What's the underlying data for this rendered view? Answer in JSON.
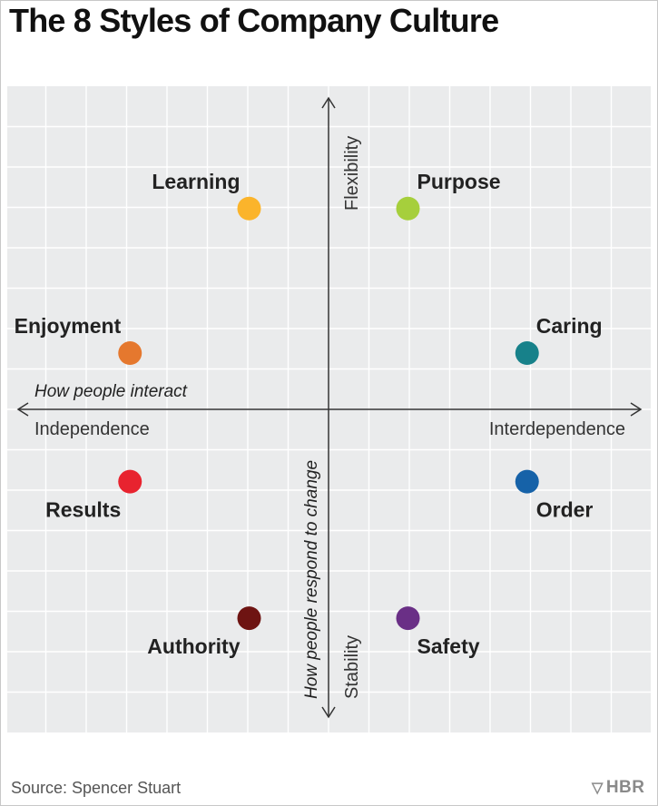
{
  "chart_data": {
    "type": "scatter",
    "title": "The 8 Styles of Company Culture",
    "xlim": [
      -4,
      4
    ],
    "ylim": [
      -4,
      4
    ],
    "grid": true,
    "x_axis": {
      "caption": "How people interact",
      "negative_label": "Independence",
      "positive_label": "Interdependence"
    },
    "y_axis": {
      "caption": "How people respond to change",
      "positive_label": "Flexibility",
      "negative_label": "Stability"
    },
    "points": [
      {
        "name": "Learning",
        "x": -1,
        "y": 2.5,
        "color": "#fbb42b",
        "label_pos": "above-left"
      },
      {
        "name": "Purpose",
        "x": 1,
        "y": 2.5,
        "color": "#a6cf3c",
        "label_pos": "above-right"
      },
      {
        "name": "Enjoyment",
        "x": -2.5,
        "y": 0.7,
        "color": "#e5782e",
        "label_pos": "above-left"
      },
      {
        "name": "Caring",
        "x": 2.5,
        "y": 0.7,
        "color": "#17818a",
        "label_pos": "above-right"
      },
      {
        "name": "Results",
        "x": -2.5,
        "y": -0.9,
        "color": "#e8232f",
        "label_pos": "below-left"
      },
      {
        "name": "Order",
        "x": 2.5,
        "y": -0.9,
        "color": "#1662a8",
        "label_pos": "below-right"
      },
      {
        "name": "Authority",
        "x": -1,
        "y": -2.6,
        "color": "#6e1412",
        "label_pos": "below-left"
      },
      {
        "name": "Safety",
        "x": 1,
        "y": -2.6,
        "color": "#6a2f86",
        "label_pos": "below-right"
      }
    ]
  },
  "footer": {
    "source": "Source: Spencer Stuart",
    "logo": "HBR"
  }
}
